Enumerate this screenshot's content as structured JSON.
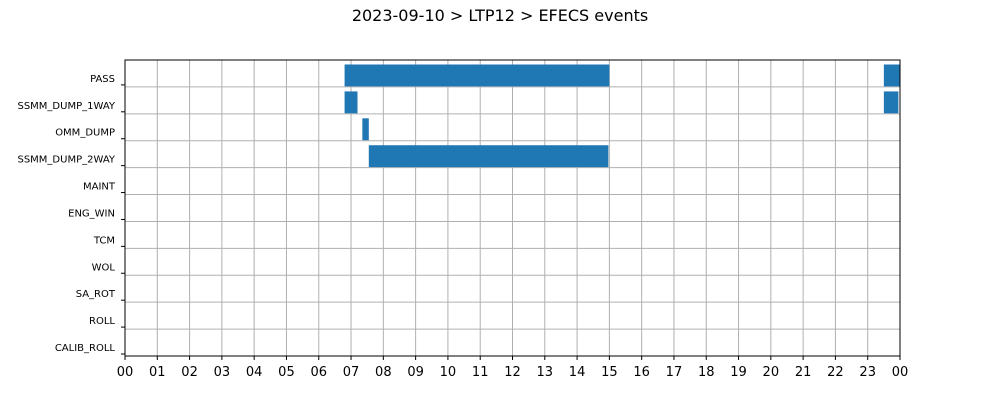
{
  "chart_data": {
    "type": "bar",
    "orientation": "horizontal-timeline",
    "title": "2023-09-10 > LTP12 > EFECS events",
    "xlabel": "",
    "ylabel": "",
    "xlim": [
      0,
      24
    ],
    "x_ticks": [
      "00",
      "01",
      "02",
      "03",
      "04",
      "05",
      "06",
      "07",
      "08",
      "09",
      "10",
      "11",
      "12",
      "13",
      "14",
      "15",
      "16",
      "17",
      "18",
      "19",
      "20",
      "21",
      "22",
      "23",
      "00"
    ],
    "categories": [
      "PASS",
      "SSMM_DUMP_1WAY",
      "OMM_DUMP",
      "SSMM_DUMP_2WAY",
      "MAINT",
      "ENG_WIN",
      "TCM",
      "WOL",
      "SA_ROT",
      "ROLL",
      "CALIB_ROLL"
    ],
    "grid": true,
    "bar_color": "#1f77b4",
    "events": [
      {
        "category": "PASS",
        "start": 6.8,
        "end": 15.0
      },
      {
        "category": "PASS",
        "start": 23.5,
        "end": 24.0
      },
      {
        "category": "SSMM_DUMP_1WAY",
        "start": 6.8,
        "end": 7.2
      },
      {
        "category": "SSMM_DUMP_1WAY",
        "start": 23.5,
        "end": 23.95
      },
      {
        "category": "OMM_DUMP",
        "start": 7.35,
        "end": 7.55
      },
      {
        "category": "SSMM_DUMP_2WAY",
        "start": 7.55,
        "end": 14.97
      }
    ]
  }
}
